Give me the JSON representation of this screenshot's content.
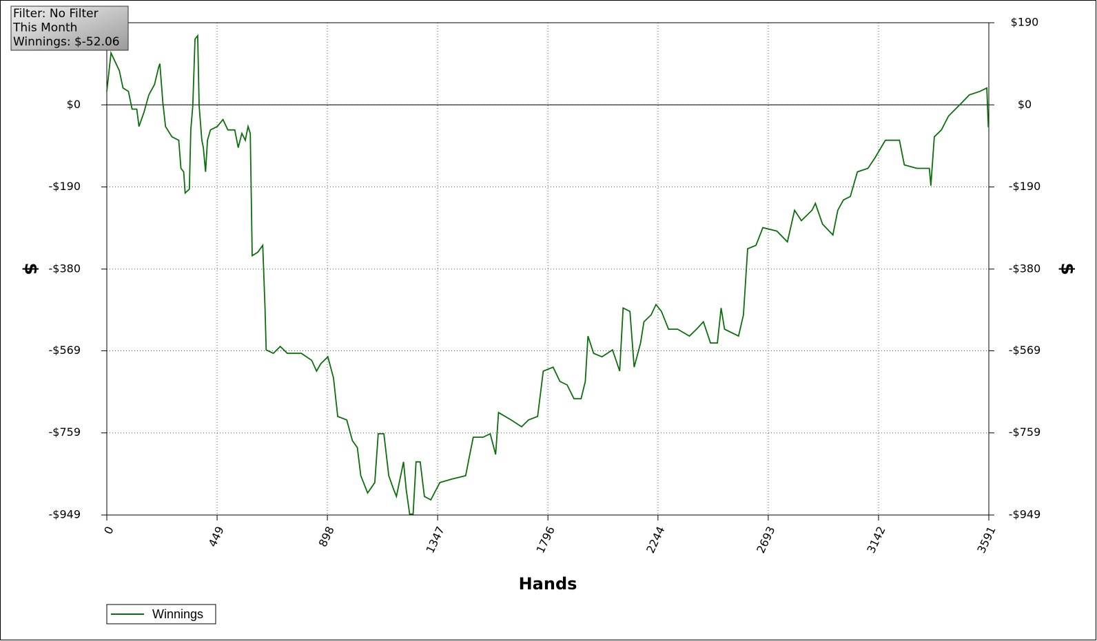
{
  "chart_data": {
    "type": "line",
    "annotations": [
      "Filter: No Filter",
      "This Month",
      "Winnings: $-52.06"
    ],
    "x_label": "Hands",
    "y_label": "$",
    "xlim": [
      0,
      3591
    ],
    "xticks": [
      0,
      449,
      898,
      1347,
      1796,
      2244,
      2693,
      3142,
      3591
    ],
    "ylim": [
      -949,
      190
    ],
    "yticks": [
      {
        "value": 190,
        "label": "$190"
      },
      {
        "value": 0,
        "label": "$0"
      },
      {
        "value": -190,
        "label": "-$190"
      },
      {
        "value": -380,
        "label": "-$380"
      },
      {
        "value": -569,
        "label": "-$569"
      },
      {
        "value": -759,
        "label": "-$759"
      },
      {
        "value": -949,
        "label": "-$949"
      }
    ],
    "grid": true,
    "zero_line": true,
    "legend": "bottom-left",
    "x": [
      0,
      17,
      51,
      66,
      88,
      103,
      122,
      131,
      151,
      171,
      194,
      211,
      216,
      228,
      239,
      265,
      293,
      302,
      313,
      319,
      336,
      342,
      350,
      359,
      370,
      376,
      387,
      393,
      402,
      410,
      422,
      450,
      473,
      493,
      521,
      535,
      550,
      564,
      575,
      584,
      592,
      615,
      635,
      644,
      649,
      678,
      706,
      735,
      763,
      792,
      834,
      854,
      871,
      900,
      923,
      940,
      977,
      1000,
      1020,
      1034,
      1062,
      1091,
      1105,
      1128,
      1148,
      1168,
      1179,
      1208,
      1219,
      1233,
      1247,
      1259,
      1276,
      1293,
      1319,
      1356,
      1404,
      1461,
      1475,
      1492,
      1532,
      1561,
      1583,
      1595,
      1646,
      1689,
      1717,
      1754,
      1777,
      1817,
      1845,
      1874,
      1902,
      1931,
      1948,
      1959,
      1982,
      2016,
      2059,
      2088,
      2102,
      2130,
      2147,
      2173,
      2187,
      2216,
      2236,
      2258,
      2287,
      2324,
      2372,
      2401,
      2429,
      2458,
      2486,
      2501,
      2515,
      2572,
      2592,
      2609,
      2643,
      2671,
      2728,
      2771,
      2800,
      2828,
      2871,
      2885,
      2914,
      2956,
      2976,
      2999,
      3027,
      3056,
      3099,
      3127,
      3170,
      3227,
      3247,
      3298,
      3349,
      3355,
      3369,
      3398,
      3427,
      3455,
      3483,
      3512,
      3554,
      3583,
      3589
    ],
    "series": [
      {
        "name": "Winnings",
        "color": "#0a6e0a",
        "values": [
          31,
          120,
          79,
          39,
          31,
          -10,
          -10,
          -50,
          -18,
          23,
          47,
          87,
          95,
          6,
          -50,
          -74,
          -82,
          -147,
          -155,
          -204,
          -195,
          -58,
          -2,
          152,
          160,
          -2,
          -82,
          -99,
          -155,
          -82,
          -58,
          -50,
          -34,
          -58,
          -58,
          -99,
          -66,
          -82,
          -50,
          -66,
          -349,
          -341,
          -325,
          -470,
          -567,
          -575,
          -559,
          -575,
          -575,
          -575,
          -591,
          -616,
          -599,
          -583,
          -632,
          -721,
          -729,
          -777,
          -793,
          -858,
          -898,
          -874,
          -761,
          -761,
          -858,
          -890,
          -906,
          -826,
          -890,
          -947,
          -947,
          -826,
          -826,
          -906,
          -914,
          -874,
          -866,
          -858,
          -817,
          -769,
          -769,
          -761,
          -809,
          -712,
          -729,
          -745,
          -729,
          -721,
          -616,
          -607,
          -640,
          -648,
          -680,
          -680,
          -640,
          -535,
          -575,
          -583,
          -567,
          -616,
          -470,
          -478,
          -607,
          -551,
          -502,
          -486,
          -462,
          -478,
          -519,
          -519,
          -535,
          -519,
          -502,
          -551,
          -551,
          -470,
          -519,
          -535,
          -486,
          -333,
          -325,
          -284,
          -292,
          -317,
          -244,
          -268,
          -244,
          -228,
          -276,
          -301,
          -244,
          -220,
          -212,
          -155,
          -147,
          -123,
          -82,
          -82,
          -139,
          -147,
          -147,
          -187,
          -74,
          -58,
          -26,
          -10,
          6,
          23,
          31,
          39,
          -52
        ]
      }
    ]
  }
}
